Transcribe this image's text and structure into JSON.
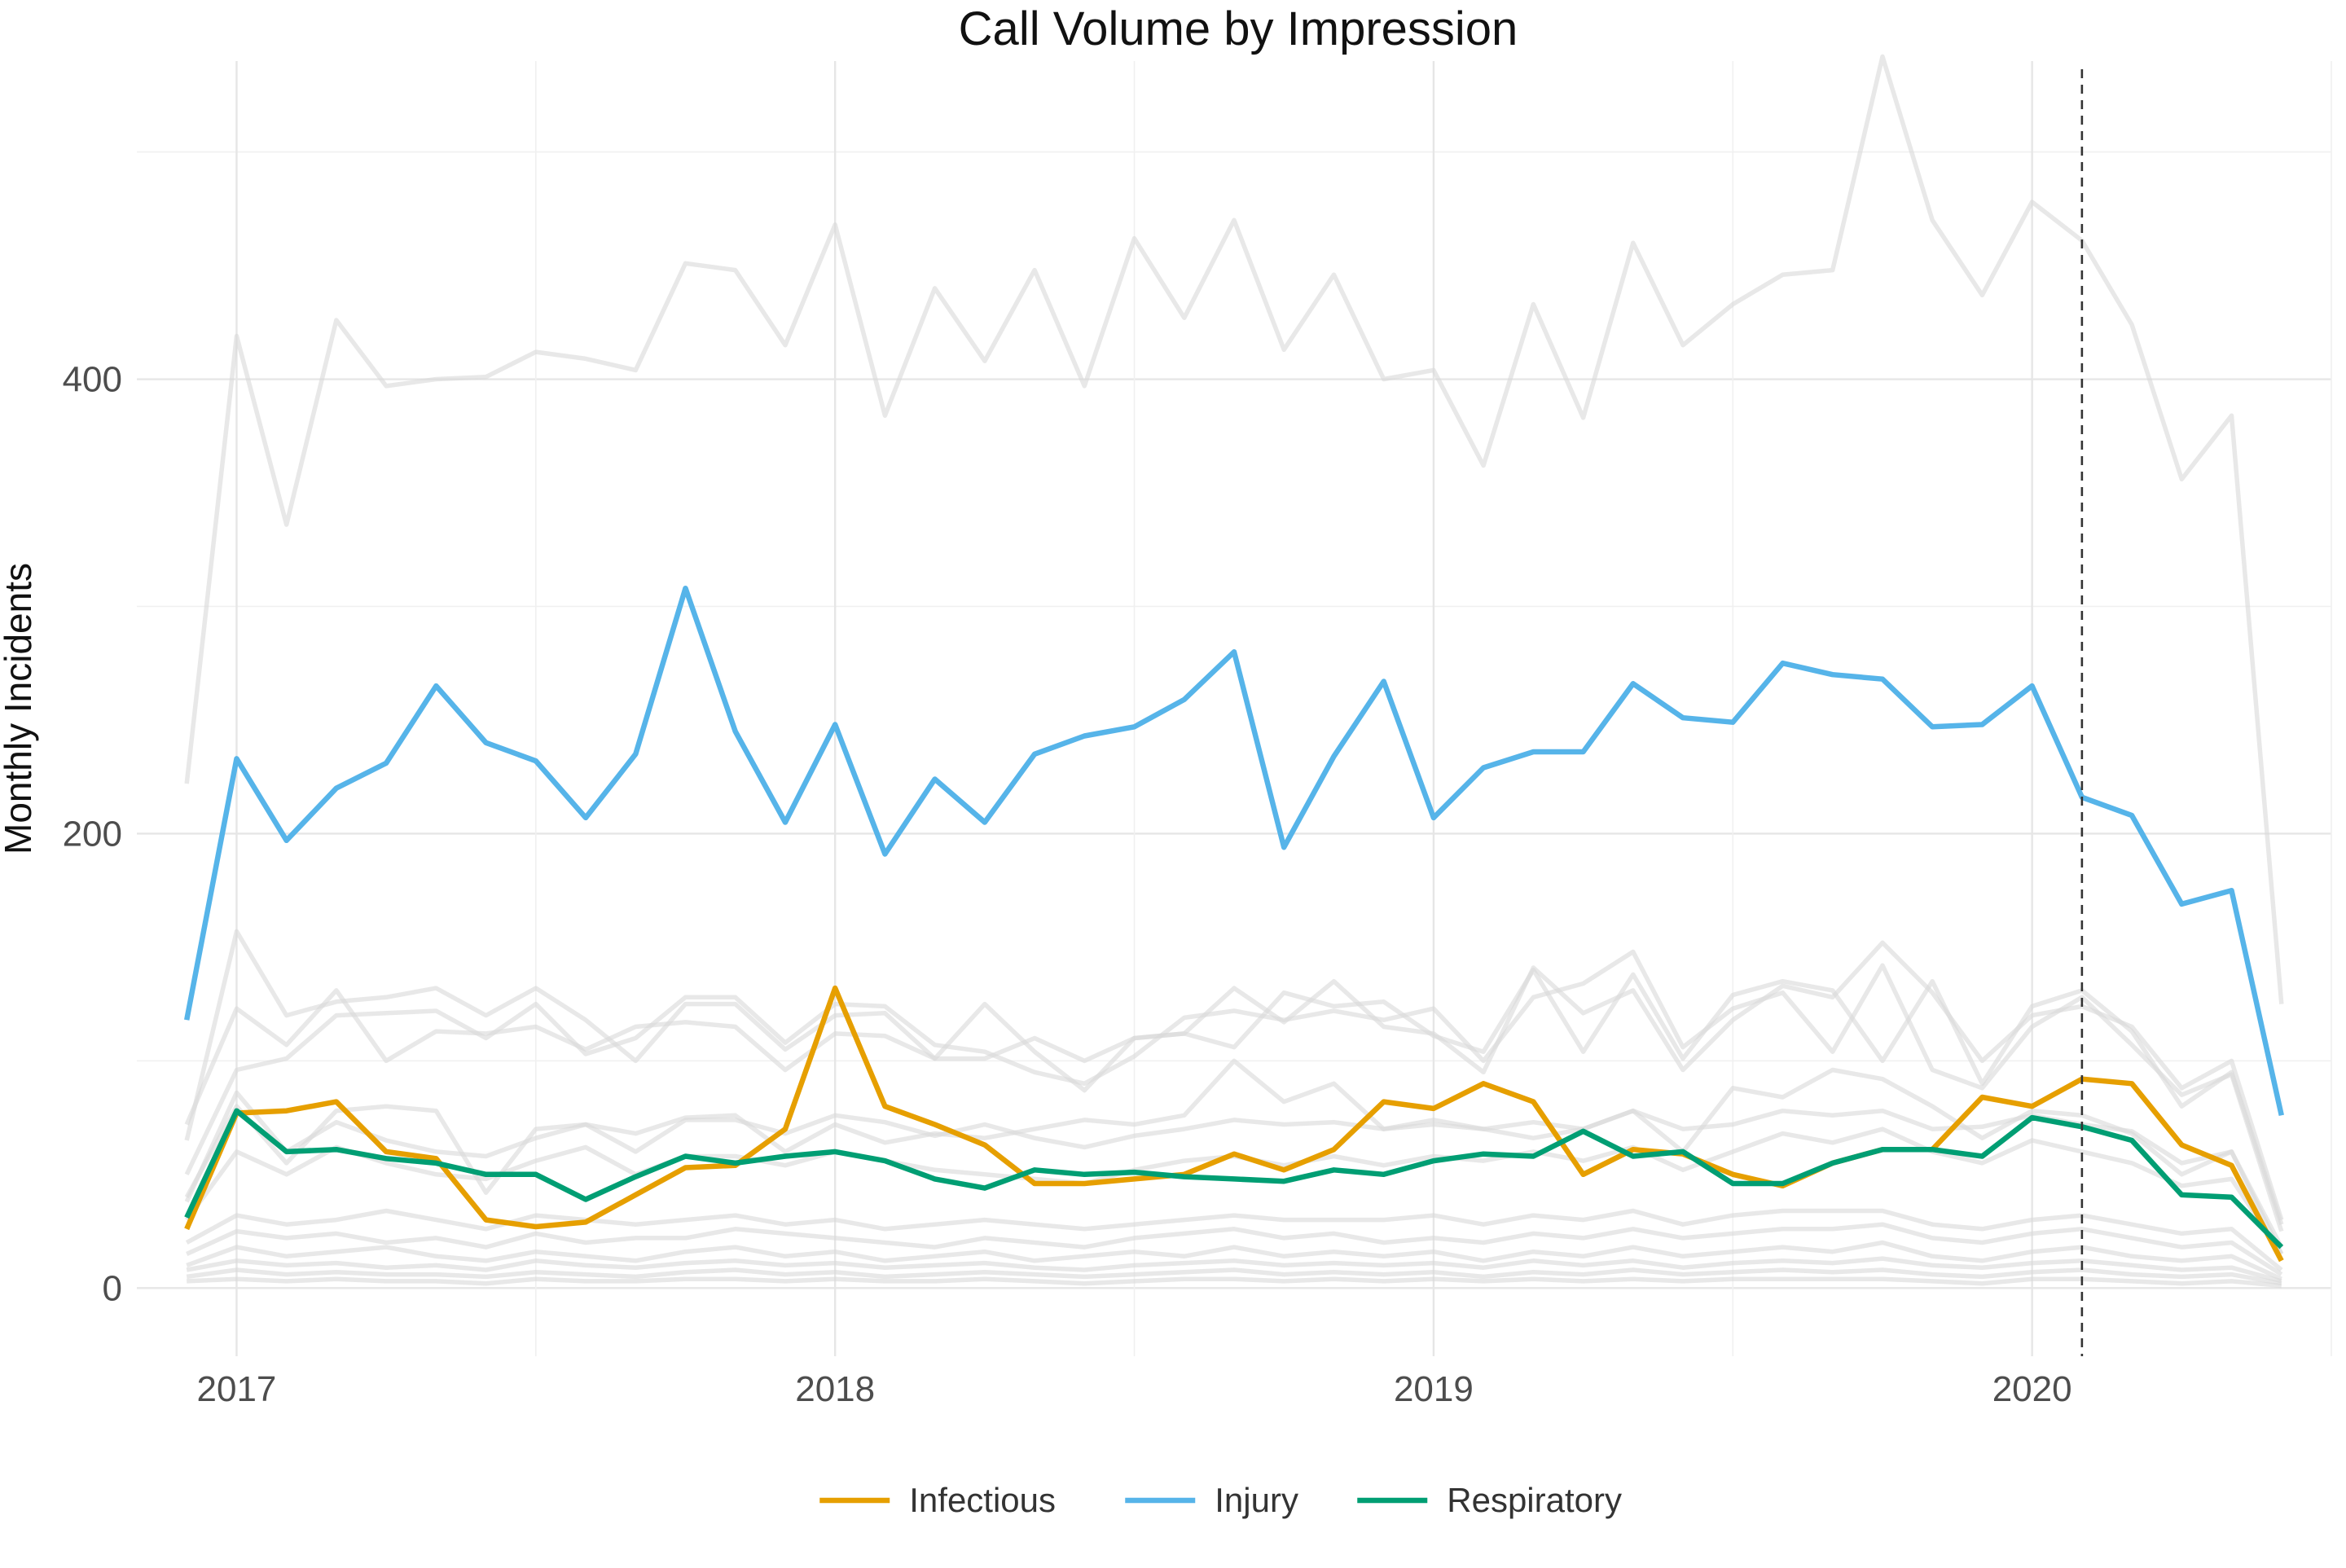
{
  "chart_data": {
    "type": "line",
    "title": "Call Volume by Impression",
    "xlabel": "",
    "ylabel": "Monthly Incidents",
    "x_ticks": [
      "2017",
      "2018",
      "2019",
      "2020"
    ],
    "y_ticks": [
      0,
      200,
      400
    ],
    "xlim": [
      "2016-11",
      "2020-07"
    ],
    "ylim": [
      -30,
      540
    ],
    "grid": true,
    "legend_position": "bottom",
    "reference_line": {
      "x": "2020-02",
      "style": "dashed",
      "color": "#333333"
    },
    "months": [
      "2016-12",
      "2017-01",
      "2017-02",
      "2017-03",
      "2017-04",
      "2017-05",
      "2017-06",
      "2017-07",
      "2017-08",
      "2017-09",
      "2017-10",
      "2017-11",
      "2017-12",
      "2018-01",
      "2018-02",
      "2018-03",
      "2018-04",
      "2018-05",
      "2018-06",
      "2018-07",
      "2018-08",
      "2018-09",
      "2018-10",
      "2018-11",
      "2018-12",
      "2019-01",
      "2019-02",
      "2019-03",
      "2019-04",
      "2019-05",
      "2019-06",
      "2019-07",
      "2019-08",
      "2019-09",
      "2019-10",
      "2019-11",
      "2019-12",
      "2020-01",
      "2020-02",
      "2020-03",
      "2020-04",
      "2020-05",
      "2020-06"
    ],
    "series": [
      {
        "name": "Infectious",
        "color": "#E69F00",
        "highlight": true,
        "values": [
          26,
          77,
          78,
          82,
          60,
          57,
          30,
          27,
          29,
          41,
          53,
          54,
          70,
          132,
          80,
          72,
          63,
          46,
          46,
          48,
          50,
          59,
          52,
          61,
          82,
          79,
          90,
          82,
          50,
          61,
          59,
          50,
          45,
          55,
          61,
          61,
          84,
          80,
          92,
          90,
          63,
          54,
          12
        ]
      },
      {
        "name": "Injury",
        "color": "#56B4E9",
        "highlight": true,
        "values": [
          118,
          233,
          197,
          220,
          231,
          265,
          240,
          232,
          207,
          235,
          308,
          245,
          205,
          248,
          191,
          224,
          205,
          235,
          243,
          247,
          259,
          280,
          194,
          234,
          267,
          207,
          229,
          236,
          236,
          266,
          251,
          249,
          275,
          270,
          268,
          247,
          248,
          265,
          216,
          208,
          169,
          175,
          76
        ]
      },
      {
        "name": "Respiratory",
        "color": "#009E73",
        "highlight": true,
        "values": [
          31,
          78,
          60,
          61,
          57,
          55,
          50,
          50,
          39,
          49,
          58,
          55,
          58,
          60,
          56,
          48,
          44,
          52,
          50,
          51,
          49,
          48,
          47,
          52,
          50,
          56,
          59,
          58,
          69,
          58,
          60,
          46,
          46,
          55,
          61,
          61,
          58,
          75,
          71,
          65,
          41,
          40,
          18
        ]
      },
      {
        "name": "",
        "color": "#d9d9d9",
        "highlight": false,
        "values": [
          222,
          419,
          336,
          426,
          397,
          400,
          401,
          412,
          409,
          404,
          451,
          448,
          415,
          468,
          384,
          440,
          408,
          448,
          397,
          462,
          427,
          470,
          413,
          446,
          400,
          404,
          362,
          433,
          383,
          460,
          415,
          433,
          446,
          448,
          542,
          470,
          437,
          478,
          461,
          424,
          356,
          384,
          125
        ]
      },
      {
        "name": "",
        "color": "#d9d9d9",
        "highlight": false,
        "values": [
          65,
          157,
          120,
          126,
          128,
          132,
          120,
          132,
          118,
          100,
          125,
          125,
          105,
          120,
          121,
          101,
          101,
          110,
          100,
          110,
          112,
          132,
          117,
          135,
          115,
          112,
          95,
          141,
          121,
          131,
          96,
          118,
          133,
          128,
          152,
          130,
          100,
          120,
          124,
          115,
          88,
          100,
          30
        ]
      },
      {
        "name": "",
        "color": "#d9d9d9",
        "highlight": false,
        "values": [
          72,
          123,
          107,
          131,
          100,
          113,
          112,
          115,
          105,
          115,
          117,
          115,
          96,
          112,
          111,
          101,
          125,
          104,
          87,
          110,
          112,
          106,
          130,
          124,
          126,
          111,
          104,
          140,
          104,
          138,
          101,
          129,
          135,
          131,
          100,
          135,
          90,
          124,
          131,
          113,
          80,
          95,
          28
        ]
      },
      {
        "name": "",
        "color": "#d9d9d9",
        "highlight": false,
        "values": [
          50,
          96,
          101,
          120,
          121,
          122,
          110,
          125,
          103,
          110,
          128,
          128,
          108,
          125,
          124,
          107,
          104,
          95,
          90,
          102,
          119,
          122,
          118,
          122,
          118,
          123,
          100,
          128,
          134,
          148,
          106,
          123,
          130,
          104,
          142,
          96,
          88,
          115,
          128,
          107,
          85,
          94,
          25
        ]
      },
      {
        "name": "",
        "color": "#d9d9d9",
        "highlight": false,
        "values": [
          38,
          86,
          60,
          73,
          65,
          60,
          58,
          66,
          72,
          60,
          74,
          74,
          68,
          76,
          73,
          67,
          72,
          66,
          62,
          67,
          70,
          74,
          72,
          73,
          70,
          72,
          70,
          73,
          70,
          78,
          70,
          72,
          78,
          76,
          78,
          70,
          71,
          76,
          72,
          69,
          55,
          60,
          18
        ]
      },
      {
        "name": "",
        "color": "#d9d9d9",
        "highlight": false,
        "values": [
          40,
          80,
          55,
          78,
          80,
          78,
          42,
          70,
          72,
          68,
          75,
          76,
          60,
          72,
          64,
          68,
          66,
          70,
          74,
          72,
          76,
          100,
          82,
          90,
          70,
          74,
          70,
          66,
          70,
          78,
          60,
          88,
          84,
          96,
          92,
          80,
          66,
          78,
          76,
          68,
          50,
          60,
          15
        ]
      },
      {
        "name": "",
        "color": "#d9d9d9",
        "highlight": false,
        "values": [
          30,
          60,
          50,
          62,
          55,
          50,
          48,
          56,
          62,
          50,
          58,
          58,
          54,
          60,
          56,
          52,
          50,
          48,
          46,
          52,
          56,
          58,
          54,
          58,
          54,
          58,
          56,
          60,
          56,
          62,
          52,
          60,
          68,
          64,
          70,
          60,
          55,
          65,
          60,
          55,
          45,
          48,
          15
        ]
      },
      {
        "name": "",
        "color": "#d9d9d9",
        "highlight": false,
        "values": [
          20,
          32,
          28,
          30,
          34,
          30,
          26,
          32,
          30,
          28,
          30,
          32,
          28,
          30,
          26,
          28,
          30,
          28,
          26,
          28,
          30,
          32,
          30,
          30,
          30,
          32,
          28,
          32,
          30,
          34,
          28,
          32,
          34,
          34,
          34,
          28,
          26,
          30,
          32,
          28,
          24,
          26,
          8
        ]
      },
      {
        "name": "",
        "color": "#d9d9d9",
        "highlight": false,
        "values": [
          15,
          25,
          22,
          24,
          20,
          22,
          18,
          24,
          20,
          22,
          22,
          26,
          24,
          22,
          20,
          18,
          22,
          20,
          18,
          22,
          24,
          26,
          22,
          24,
          20,
          22,
          20,
          24,
          22,
          26,
          22,
          24,
          26,
          26,
          28,
          22,
          20,
          24,
          26,
          22,
          18,
          20,
          6
        ]
      },
      {
        "name": "",
        "color": "#d9d9d9",
        "highlight": false,
        "values": [
          10,
          18,
          14,
          16,
          18,
          14,
          12,
          16,
          14,
          12,
          16,
          18,
          14,
          16,
          12,
          14,
          16,
          12,
          14,
          16,
          14,
          18,
          14,
          16,
          14,
          16,
          12,
          16,
          14,
          18,
          14,
          16,
          18,
          16,
          20,
          14,
          12,
          16,
          18,
          14,
          12,
          14,
          4
        ]
      },
      {
        "name": "",
        "color": "#d9d9d9",
        "highlight": false,
        "values": [
          8,
          12,
          10,
          11,
          9,
          10,
          8,
          12,
          10,
          9,
          11,
          12,
          10,
          11,
          9,
          10,
          11,
          9,
          8,
          10,
          11,
          12,
          10,
          11,
          10,
          11,
          9,
          12,
          10,
          12,
          9,
          11,
          12,
          11,
          13,
          10,
          9,
          11,
          12,
          10,
          8,
          9,
          3
        ]
      },
      {
        "name": "",
        "color": "#d9d9d9",
        "highlight": false,
        "values": [
          5,
          8,
          6,
          7,
          6,
          6,
          5,
          7,
          6,
          5,
          7,
          8,
          6,
          7,
          5,
          6,
          7,
          6,
          5,
          6,
          7,
          8,
          6,
          7,
          6,
          7,
          5,
          7,
          6,
          8,
          6,
          7,
          8,
          7,
          8,
          6,
          5,
          7,
          8,
          6,
          5,
          6,
          2
        ]
      },
      {
        "name": "",
        "color": "#d9d9d9",
        "highlight": false,
        "values": [
          3,
          4,
          3,
          4,
          3,
          3,
          2,
          4,
          3,
          3,
          4,
          4,
          3,
          4,
          3,
          3,
          4,
          3,
          2,
          3,
          4,
          4,
          3,
          4,
          3,
          4,
          3,
          4,
          3,
          4,
          3,
          4,
          4,
          4,
          4,
          3,
          2,
          4,
          4,
          3,
          2,
          3,
          1
        ]
      }
    ]
  }
}
